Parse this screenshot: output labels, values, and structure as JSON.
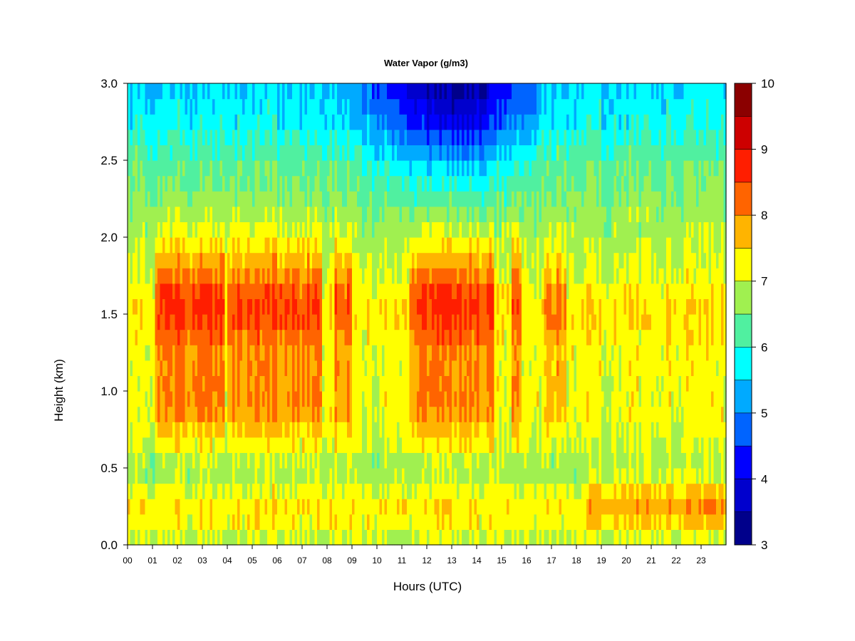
{
  "chart_data": {
    "type": "heatmap",
    "title": "Water Vapor (g/m3)",
    "xlabel": "Hours (UTC)",
    "ylabel": "Height (km)",
    "x_ticks": [
      "00",
      "01",
      "02",
      "03",
      "04",
      "05",
      "06",
      "07",
      "08",
      "09",
      "10",
      "11",
      "12",
      "13",
      "14",
      "15",
      "16",
      "17",
      "18",
      "19",
      "20",
      "21",
      "22",
      "23"
    ],
    "y_ticks": [
      "0.0",
      "0.5",
      "1.0",
      "1.5",
      "2.0",
      "2.5",
      "3.0"
    ],
    "xlim": [
      0,
      24
    ],
    "ylim": [
      0.0,
      3.0
    ],
    "colorbar": {
      "ticks": [
        "3",
        "4",
        "5",
        "6",
        "7",
        "8",
        "9",
        "10"
      ],
      "range": [
        3,
        10
      ],
      "levels": [
        3,
        3.5,
        4,
        4.5,
        5,
        5.5,
        6,
        6.5,
        7,
        7.5,
        8,
        8.5,
        9,
        9.5,
        10
      ],
      "colors": [
        "#00008b",
        "#0000cd",
        "#0000ff",
        "#0064ff",
        "#00aaff",
        "#00ffff",
        "#50f0a0",
        "#a0f050",
        "#ffff00",
        "#ffb400",
        "#ff6400",
        "#ff1e00",
        "#cd0000",
        "#8b0000"
      ]
    },
    "height_levels_km": [
      0.0,
      0.1,
      0.2,
      0.3,
      0.4,
      0.5,
      0.6,
      0.7,
      0.8,
      0.9,
      1.0,
      1.1,
      1.2,
      1.3,
      1.4,
      1.5,
      1.6,
      1.7,
      1.8,
      1.9,
      2.0,
      2.1,
      2.2,
      2.3,
      2.4,
      2.5,
      2.6,
      2.7,
      2.8,
      2.9,
      3.0
    ],
    "base_profile_g_m3": [
      7.0,
      7.3,
      7.4,
      7.1,
      6.8,
      6.8,
      7.0,
      7.1,
      7.2,
      7.2,
      7.2,
      7.2,
      7.2,
      7.3,
      7.4,
      7.4,
      7.3,
      7.1,
      7.0,
      6.9,
      6.8,
      6.7,
      6.6,
      6.5,
      6.4,
      6.2,
      6.0,
      5.8,
      5.7,
      5.6,
      5.5
    ],
    "moist_episodes": [
      {
        "start_h": 1.1,
        "end_h": 3.9,
        "peak_g_m3": 8.7
      },
      {
        "start_h": 4.0,
        "end_h": 7.8,
        "peak_g_m3": 8.5
      },
      {
        "start_h": 8.3,
        "end_h": 9.0,
        "peak_g_m3": 8.3
      },
      {
        "start_h": 11.3,
        "end_h": 14.7,
        "peak_g_m3": 8.6
      },
      {
        "start_h": 15.4,
        "end_h": 15.8,
        "peak_g_m3": 8.4
      },
      {
        "start_h": 16.7,
        "end_h": 17.6,
        "peak_g_m3": 8.1
      }
    ],
    "dry_upper_episodes": [
      {
        "start_h": 6.0,
        "end_h": 16.5,
        "center_h": 13.0,
        "min_g_m3": 3.8
      }
    ]
  }
}
